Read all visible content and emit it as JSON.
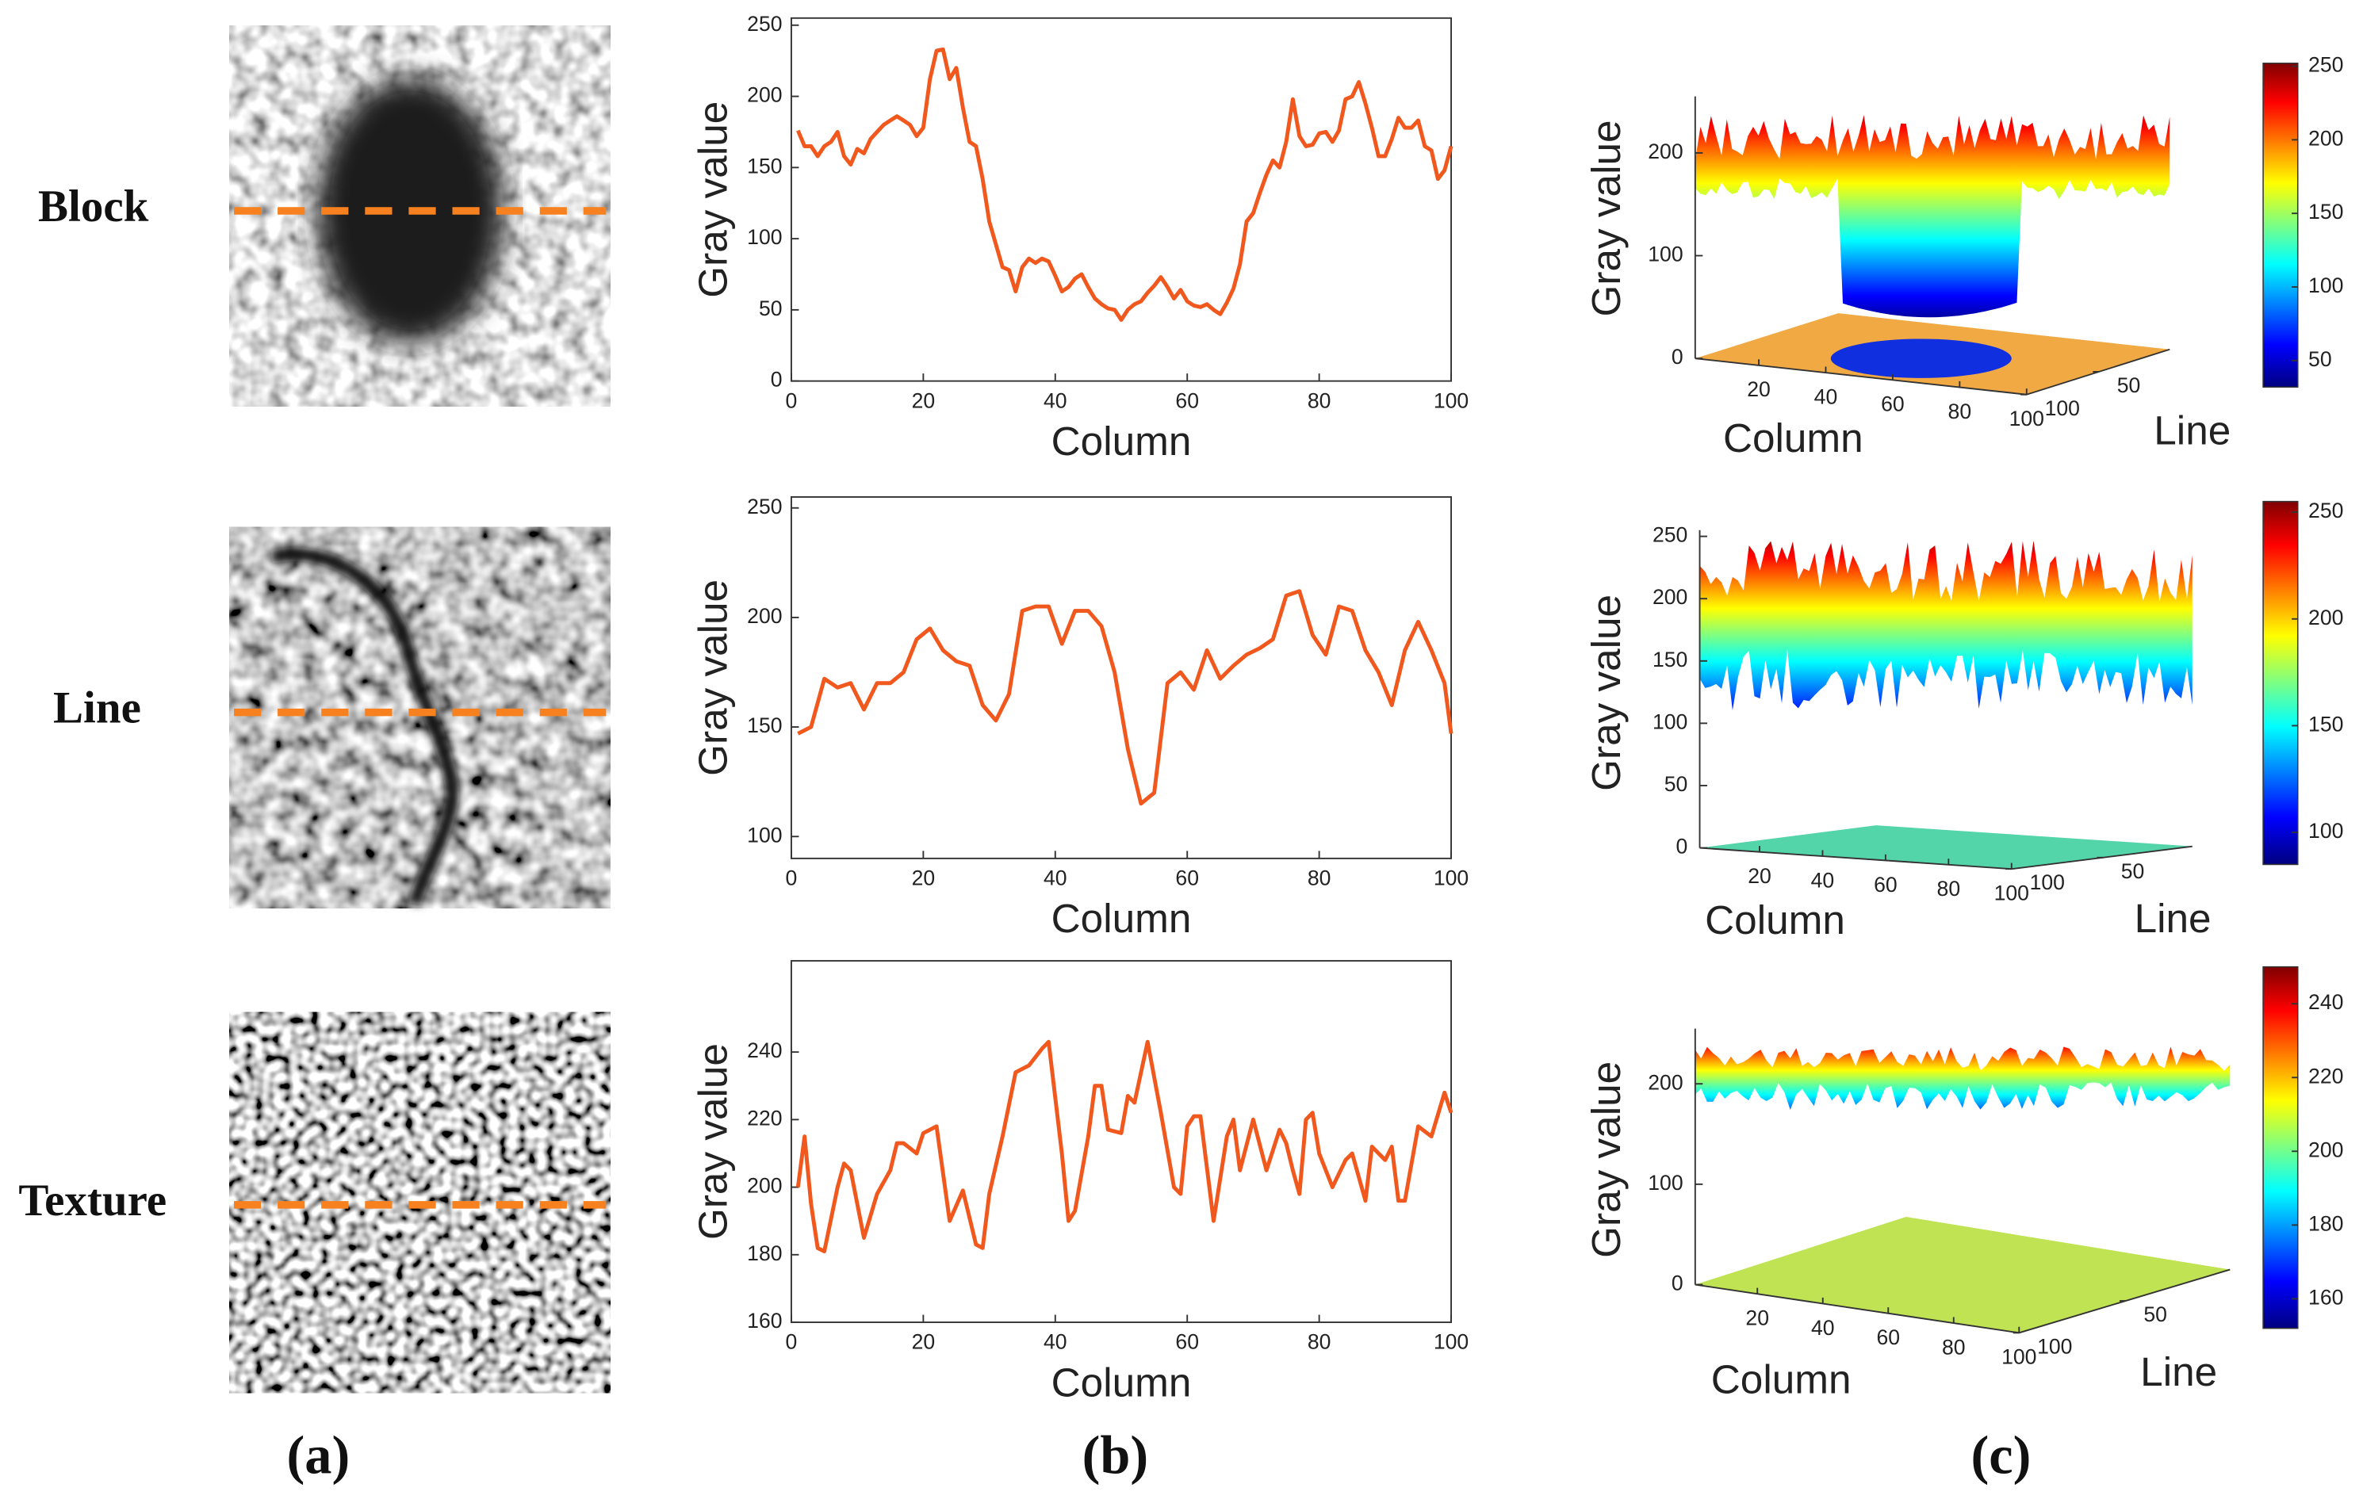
{
  "row_labels": [
    "Block",
    "Line",
    "Texture"
  ],
  "panel_labels": [
    "(a)",
    "(b)",
    "(c)"
  ],
  "chart_data": [
    {
      "type": "line",
      "xlabel": "Column",
      "ylabel": "Gray value",
      "xlim": [
        0,
        100
      ],
      "ylim": [
        0,
        255
      ],
      "xticks": [
        0,
        20,
        40,
        60,
        80,
        100
      ],
      "yticks": [
        0,
        50,
        100,
        150,
        200,
        250
      ],
      "x": [
        1,
        2,
        3,
        4,
        5,
        6,
        7,
        8,
        9,
        10,
        11,
        12,
        13,
        14,
        15,
        16,
        17,
        18,
        19,
        20,
        21,
        22,
        23,
        24,
        25,
        26,
        27,
        28,
        29,
        30,
        31,
        32,
        33,
        34,
        35,
        36,
        37,
        38,
        39,
        40,
        41,
        42,
        43,
        44,
        45,
        46,
        47,
        48,
        49,
        50,
        51,
        52,
        53,
        54,
        55,
        56,
        57,
        58,
        59,
        60,
        61,
        62,
        63,
        64,
        65,
        66,
        67,
        68,
        69,
        70,
        71,
        72,
        73,
        74,
        75,
        76,
        77,
        78,
        79,
        80,
        81,
        82,
        83,
        84,
        85,
        86,
        87,
        88,
        89,
        90,
        91,
        92,
        93,
        94,
        95,
        96,
        97,
        98,
        99,
        100
      ],
      "series": [
        {
          "color": "#f0581e",
          "values": [
            176,
            165,
            165,
            158,
            165,
            168,
            175,
            158,
            152,
            163,
            160,
            170,
            175,
            180,
            183,
            186,
            183,
            180,
            172,
            178,
            212,
            232,
            233,
            212,
            220,
            192,
            168,
            165,
            142,
            112,
            96,
            80,
            78,
            63,
            80,
            86,
            83,
            86,
            84,
            74,
            63,
            66,
            72,
            75,
            66,
            58,
            54,
            51,
            50,
            43,
            50,
            54,
            56,
            62,
            67,
            73,
            66,
            58,
            64,
            56,
            53,
            52,
            54,
            50,
            47,
            55,
            65,
            82,
            112,
            118,
            132,
            145,
            155,
            150,
            168,
            198,
            172,
            165,
            166,
            174,
            175,
            168,
            176,
            198,
            200,
            210,
            195,
            178,
            158,
            158,
            170,
            185,
            178,
            178,
            183,
            165,
            162,
            142,
            148,
            165
          ]
        }
      ]
    },
    {
      "type": "line",
      "xlabel": "Column",
      "ylabel": "Gray value",
      "xlim": [
        0,
        100
      ],
      "ylim": [
        90,
        255
      ],
      "xticks": [
        0,
        20,
        40,
        60,
        80,
        100
      ],
      "yticks": [
        100,
        150,
        200,
        250
      ],
      "x": [
        1,
        3,
        5,
        7,
        9,
        11,
        13,
        15,
        17,
        19,
        21,
        23,
        25,
        27,
        29,
        31,
        33,
        35,
        37,
        39,
        41,
        43,
        45,
        47,
        49,
        51,
        53,
        55,
        57,
        59,
        61,
        63,
        65,
        67,
        69,
        71,
        73,
        75,
        77,
        79,
        81,
        83,
        85,
        87,
        89,
        91,
        93,
        95,
        97,
        99,
        100
      ],
      "series": [
        {
          "color": "#f0581e",
          "values": [
            147,
            150,
            172,
            168,
            170,
            158,
            170,
            170,
            175,
            190,
            195,
            185,
            180,
            178,
            160,
            153,
            165,
            203,
            205,
            205,
            188,
            203,
            203,
            196,
            175,
            140,
            115,
            120,
            170,
            175,
            167,
            185,
            172,
            178,
            183,
            186,
            190,
            210,
            212,
            192,
            183,
            205,
            203,
            185,
            175,
            160,
            185,
            198,
            185,
            170,
            147
          ]
        }
      ]
    },
    {
      "type": "line",
      "xlabel": "Column",
      "ylabel": "Gray value",
      "xlim": [
        0,
        100
      ],
      "ylim": [
        160,
        267
      ],
      "xticks": [
        0,
        20,
        40,
        60,
        80,
        100
      ],
      "yticks": [
        160,
        180,
        200,
        220,
        240
      ],
      "x": [
        1,
        2,
        3,
        4,
        5,
        7,
        8,
        9,
        11,
        13,
        15,
        16,
        17,
        19,
        20,
        22,
        24,
        26,
        28,
        29,
        30,
        32,
        34,
        36,
        38,
        39,
        41,
        42,
        43,
        45,
        46,
        47,
        48,
        50,
        51,
        52,
        54,
        56,
        58,
        59,
        60,
        61,
        62,
        64,
        66,
        67,
        68,
        70,
        72,
        74,
        75,
        76,
        77,
        78,
        79,
        80,
        82,
        84,
        85,
        86,
        87,
        88,
        90,
        91,
        92,
        93,
        95,
        97,
        99,
        100
      ],
      "series": [
        {
          "color": "#f0581e",
          "values": [
            200,
            215,
            195,
            182,
            181,
            200,
            207,
            205,
            185,
            198,
            205,
            213,
            213,
            210,
            216,
            218,
            190,
            199,
            183,
            182,
            198,
            215,
            234,
            236,
            241,
            243,
            210,
            190,
            193,
            215,
            230,
            230,
            217,
            216,
            227,
            225,
            243,
            222,
            200,
            198,
            218,
            221,
            221,
            190,
            215,
            220,
            205,
            220,
            205,
            217,
            213,
            205,
            198,
            220,
            222,
            210,
            200,
            208,
            210,
            203,
            196,
            212,
            208,
            212,
            196,
            196,
            218,
            215,
            228,
            222
          ]
        }
      ]
    }
  ],
  "surfaces": [
    {
      "zlabel": "Gray value",
      "xlabel": "Column",
      "ylabel": "Line",
      "zlim": [
        0,
        255
      ],
      "zticks": [
        0,
        100,
        200
      ],
      "xlim": [
        1,
        100
      ],
      "xticks": [
        20,
        40,
        60,
        80,
        100
      ],
      "ylim": [
        1,
        100
      ],
      "yticks": [
        50,
        100
      ],
      "clim": [
        32,
        252
      ],
      "colorbar_ticks": [
        50,
        100,
        150,
        200,
        250
      ]
    },
    {
      "zlabel": "Gray value",
      "xlabel": "Column",
      "ylabel": "Line",
      "zlim": [
        0,
        255
      ],
      "zticks": [
        0,
        50,
        100,
        150,
        200,
        250
      ],
      "xlim": [
        1,
        100
      ],
      "xticks": [
        20,
        40,
        60,
        80,
        100
      ],
      "ylim": [
        1,
        100
      ],
      "yticks": [
        50,
        100
      ],
      "clim": [
        85,
        255
      ],
      "colorbar_ticks": [
        100,
        150,
        200,
        250
      ]
    },
    {
      "zlabel": "Gray value",
      "xlabel": "Column",
      "ylabel": "Line",
      "zlim": [
        0,
        255
      ],
      "zticks": [
        0,
        100,
        200
      ],
      "xlim": [
        1,
        100
      ],
      "xticks": [
        20,
        40,
        60,
        80,
        100
      ],
      "ylim": [
        1,
        100
      ],
      "yticks": [
        50,
        100
      ],
      "clim": [
        152,
        250
      ],
      "colorbar_ticks": [
        160,
        180,
        200,
        220,
        240
      ]
    }
  ]
}
